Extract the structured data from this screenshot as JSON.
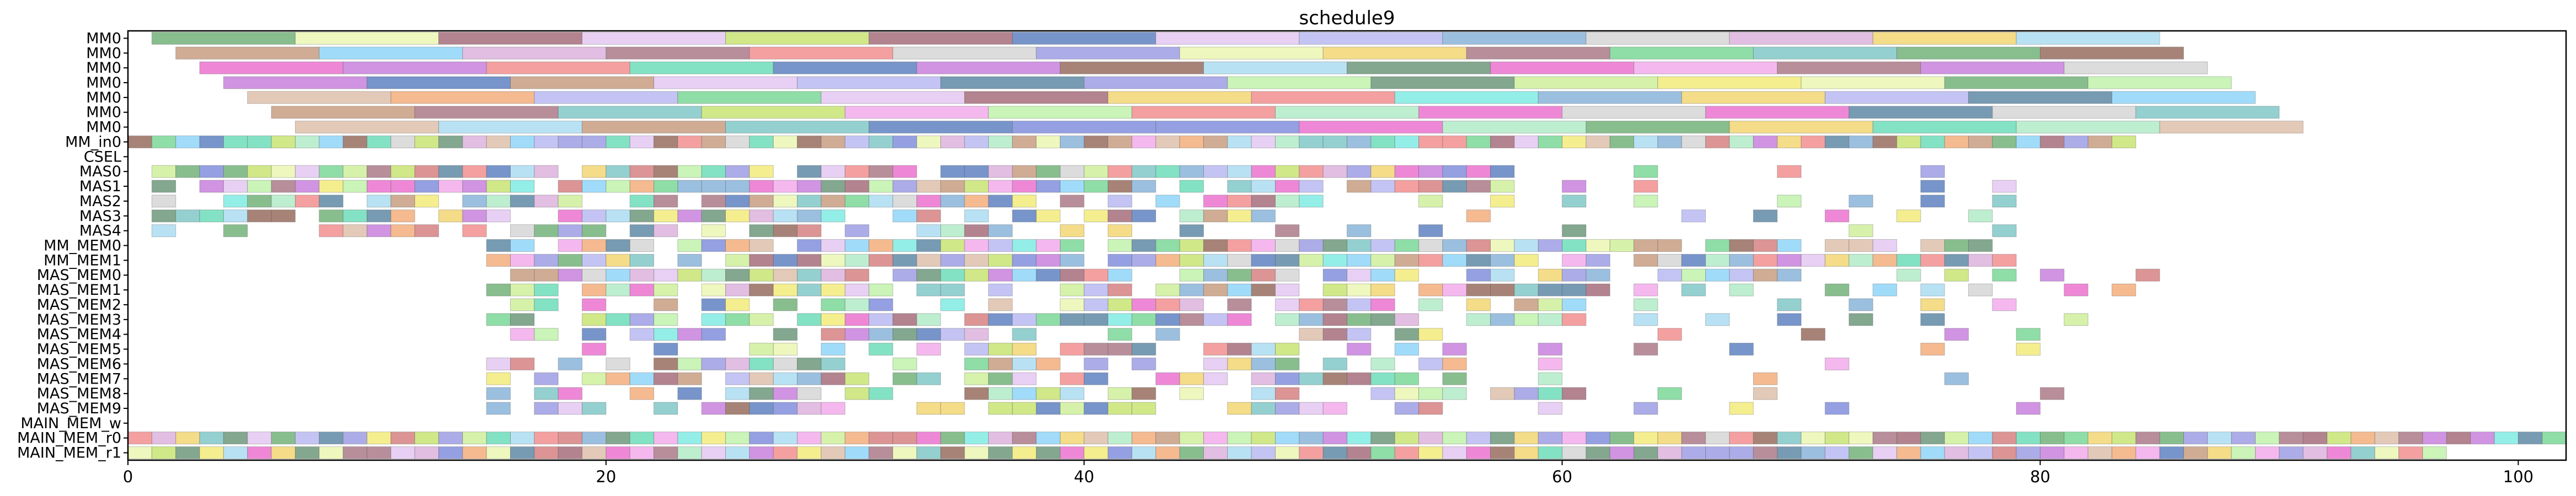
{
  "chart_data": {
    "type": "gantt",
    "title": "schedule9",
    "xlabel": "",
    "ylabel": "",
    "xlim": [
      0,
      102
    ],
    "xticks": [
      0,
      20,
      40,
      60,
      80,
      100
    ],
    "grid": false,
    "legend": "none",
    "rows": [
      "MM0",
      "MM0",
      "MM0",
      "MM0",
      "MM0",
      "MM0",
      "MM0",
      "MM_in0",
      "CSEL",
      "MAS0",
      "MAS1",
      "MAS2",
      "MAS3",
      "MAS4",
      "MM_MEM0",
      "MM_MEM1",
      "MAS_MEM0",
      "MAS_MEM1",
      "MAS_MEM2",
      "MAS_MEM3",
      "MAS_MEM4",
      "MAS_MEM5",
      "MAS_MEM6",
      "MAS_MEM7",
      "MAS_MEM8",
      "MAS_MEM9",
      "MAIN_MEM_w",
      "MAIN_MEM_r0",
      "MAIN_MEM_r1"
    ],
    "patterns": [
      {
        "row": 0,
        "start": 1,
        "dur": 6,
        "step": 6,
        "count": 14
      },
      {
        "row": 1,
        "start": 2,
        "dur": 6,
        "step": 6,
        "count": 14
      },
      {
        "row": 2,
        "start": 3,
        "dur": 6,
        "step": 6,
        "count": 14
      },
      {
        "row": 3,
        "start": 4,
        "dur": 6,
        "step": 6,
        "count": 14
      },
      {
        "row": 4,
        "start": 5,
        "dur": 6,
        "step": 6,
        "count": 14
      },
      {
        "row": 5,
        "start": 6,
        "dur": 6,
        "step": 6,
        "count": 14
      },
      {
        "row": 6,
        "start": 7,
        "dur": 6,
        "step": 6,
        "count": 14
      },
      {
        "row": 7,
        "start": 0,
        "dur": 1,
        "step": 1,
        "count": 84
      },
      {
        "row": 9,
        "start": 1,
        "dur": 1,
        "step": 1,
        "count": 56,
        "skip": 0.12
      },
      {
        "row": 9,
        "start": 57,
        "dur": 1,
        "step": 3,
        "count": 8,
        "skip": 0.3
      },
      {
        "row": 10,
        "start": 1,
        "dur": 1,
        "step": 1,
        "count": 56,
        "skip": 0.15
      },
      {
        "row": 10,
        "start": 57,
        "dur": 1,
        "step": 3,
        "count": 8,
        "skip": 0.3
      },
      {
        "row": 11,
        "start": 1,
        "dur": 1,
        "step": 1,
        "count": 50,
        "skip": 0.2
      },
      {
        "row": 11,
        "start": 51,
        "dur": 1,
        "step": 3,
        "count": 10,
        "skip": 0.35
      },
      {
        "row": 12,
        "start": 1,
        "dur": 1,
        "step": 1,
        "count": 46,
        "skip": 0.25
      },
      {
        "row": 12,
        "start": 47,
        "dur": 1,
        "step": 3,
        "count": 13,
        "skip": 0.35
      },
      {
        "row": 13,
        "start": 1,
        "dur": 1,
        "step": 1,
        "count": 44,
        "skip": 0.3
      },
      {
        "row": 13,
        "start": 45,
        "dur": 1,
        "step": 3,
        "count": 12,
        "skip": 0.55
      },
      {
        "row": 14,
        "start": 15,
        "dur": 1,
        "step": 1,
        "count": 63,
        "skip": 0.08
      },
      {
        "row": 15,
        "start": 15,
        "dur": 1,
        "step": 1,
        "count": 64,
        "skip": 0.1
      },
      {
        "row": 16,
        "start": 15,
        "dur": 1,
        "step": 1,
        "count": 55,
        "skip": 0.25
      },
      {
        "row": 16,
        "start": 70,
        "dur": 1,
        "step": 2,
        "count": 8,
        "skip": 0.35
      },
      {
        "row": 17,
        "start": 15,
        "dur": 1,
        "step": 1,
        "count": 50,
        "skip": 0.25
      },
      {
        "row": 17,
        "start": 65,
        "dur": 1,
        "step": 2,
        "count": 10,
        "skip": 0.35
      },
      {
        "row": 18,
        "start": 15,
        "dur": 1,
        "step": 1,
        "count": 45,
        "skip": 0.3
      },
      {
        "row": 18,
        "start": 60,
        "dur": 1,
        "step": 3,
        "count": 8,
        "skip": 0.45
      },
      {
        "row": 19,
        "start": 15,
        "dur": 1,
        "step": 1,
        "count": 45,
        "skip": 0.3
      },
      {
        "row": 19,
        "start": 60,
        "dur": 1,
        "step": 3,
        "count": 8,
        "skip": 0.35
      },
      {
        "row": 20,
        "start": 15,
        "dur": 1,
        "step": 1,
        "count": 40,
        "skip": 0.35
      },
      {
        "row": 20,
        "start": 55,
        "dur": 1,
        "step": 3,
        "count": 9,
        "skip": 0.55
      },
      {
        "row": 21,
        "start": 15,
        "dur": 1,
        "step": 1,
        "count": 40,
        "skip": 0.4
      },
      {
        "row": 21,
        "start": 55,
        "dur": 1,
        "step": 4,
        "count": 7,
        "skip": 0.4
      },
      {
        "row": 22,
        "start": 15,
        "dur": 1,
        "step": 1,
        "count": 40,
        "skip": 0.4
      },
      {
        "row": 22,
        "start": 55,
        "dur": 1,
        "step": 4,
        "count": 7,
        "skip": 0.4
      },
      {
        "row": 23,
        "start": 15,
        "dur": 1,
        "step": 1,
        "count": 45,
        "skip": 0.35
      },
      {
        "row": 23,
        "start": 60,
        "dur": 1,
        "step": 4,
        "count": 5,
        "skip": 0.45
      },
      {
        "row": 24,
        "start": 15,
        "dur": 1,
        "step": 1,
        "count": 45,
        "skip": 0.35
      },
      {
        "row": 24,
        "start": 60,
        "dur": 1,
        "step": 4,
        "count": 6,
        "skip": 0.4
      },
      {
        "row": 25,
        "start": 15,
        "dur": 1,
        "step": 1,
        "count": 40,
        "skip": 0.4
      },
      {
        "row": 25,
        "start": 55,
        "dur": 1,
        "step": 4,
        "count": 8,
        "skip": 0.55
      },
      {
        "row": 27,
        "start": 0,
        "dur": 1,
        "step": 1,
        "count": 102
      },
      {
        "row": 28,
        "start": 0,
        "dur": 1,
        "step": 1,
        "count": 97
      }
    ]
  }
}
